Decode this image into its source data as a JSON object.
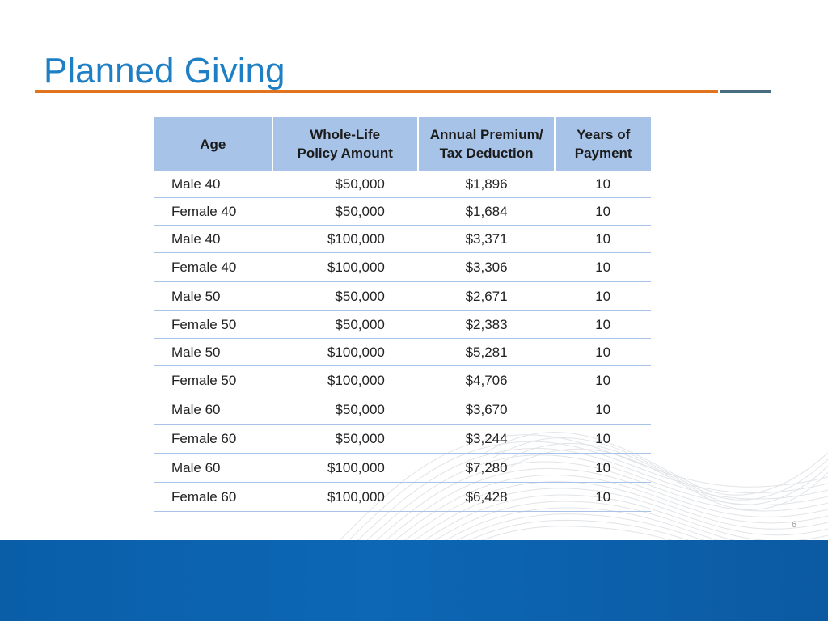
{
  "slide": {
    "title": "Planned Giving",
    "page_number": "6"
  },
  "colors": {
    "title_blue": "#1f7fc4",
    "rule_orange": "#e2731e",
    "rule_slate": "#4a6c80",
    "header_fill": "#a7c4e8",
    "footer_blue": "#0d67b5"
  },
  "table": {
    "headers": {
      "age": "Age",
      "amount_line1": "Whole-Life",
      "amount_line2": "Policy Amount",
      "premium_line1": "Annual Premium/",
      "premium_line2": "Tax Deduction",
      "years_line1": "Years of",
      "years_line2": "Payment"
    },
    "rows": [
      {
        "age": "Male 40",
        "amount": "$50,000",
        "premium": "$1,896",
        "years": "10"
      },
      {
        "age": "Female 40",
        "amount": "$50,000",
        "premium": "$1,684",
        "years": "10"
      },
      {
        "age": "Male 40",
        "amount": "$100,000",
        "premium": "$3,371",
        "years": "10"
      },
      {
        "age": "Female 40",
        "amount": "$100,000",
        "premium": "$3,306",
        "years": "10"
      },
      {
        "age": "Male 50",
        "amount": "$50,000",
        "premium": "$2,671",
        "years": "10"
      },
      {
        "age": "Female 50",
        "amount": "$50,000",
        "premium": "$2,383",
        "years": "10"
      },
      {
        "age": "Male 50",
        "amount": "$100,000",
        "premium": "$5,281",
        "years": "10"
      },
      {
        "age": "Female 50",
        "amount": "$100,000",
        "premium": "$4,706",
        "years": "10"
      },
      {
        "age": "Male 60",
        "amount": "$50,000",
        "premium": "$3,670",
        "years": "10"
      },
      {
        "age": "Female 60",
        "amount": "$50,000",
        "premium": "$3,244",
        "years": "10"
      },
      {
        "age": "Male 60",
        "amount": "$100,000",
        "premium": "$7,280",
        "years": "10"
      },
      {
        "age": "Female 60",
        "amount": "$100,000",
        "premium": "$6,428",
        "years": "10"
      }
    ]
  }
}
